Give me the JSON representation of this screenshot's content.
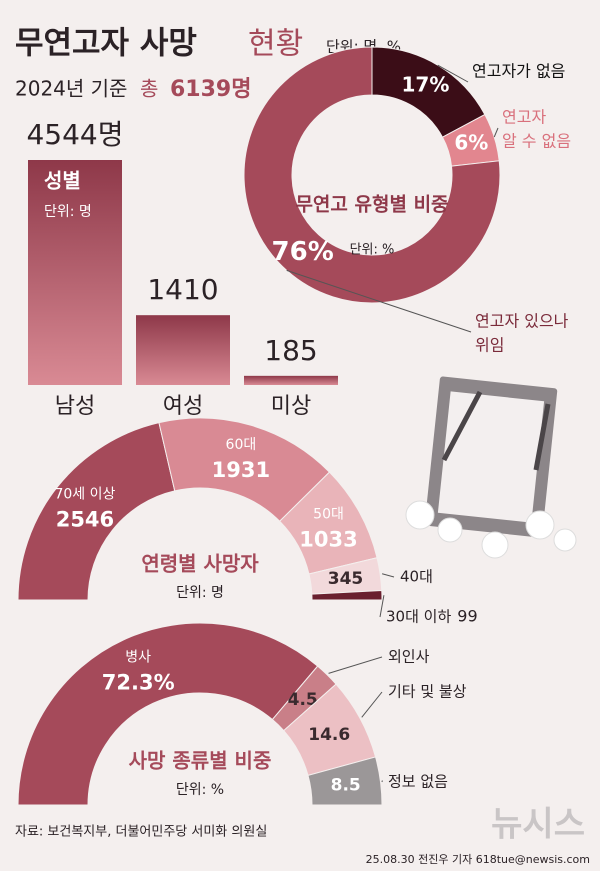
{
  "header": {
    "title": "무연고자 사망",
    "title_suffix": "현황",
    "unit": "단위: 명, %",
    "basis": "2024년 기준",
    "total_label": "총",
    "total": "6139명"
  },
  "chart_data": [
    {
      "type": "bar",
      "title": "성별",
      "subtitle": "단위: 명",
      "categories": [
        "남성",
        "여성",
        "미상"
      ],
      "values": [
        4544,
        1410,
        185
      ],
      "value_labels": [
        "4544명",
        "1410",
        "185"
      ],
      "color": "#a54a5a"
    },
    {
      "type": "donut",
      "title": "무연고 유형별 비중",
      "subtitle": "단위: %",
      "categories": [
        [
          "연고자가 없음"
        ],
        [
          "연고자",
          "알 수 없음"
        ],
        [
          "연고자 있으나",
          "위임"
        ]
      ],
      "values": [
        17,
        6,
        76
      ],
      "value_labels": [
        "17%",
        "6%",
        "76%"
      ],
      "colors": [
        "#3b0d17",
        "#e2868f",
        "#a54a5a"
      ]
    },
    {
      "type": "half-donut",
      "title": "연령별 사망자",
      "subtitle": "단위: 명",
      "categories": [
        "70세 이상",
        "60대",
        "50대",
        "40대",
        "30대 이하"
      ],
      "values": [
        2546,
        1931,
        1033,
        345,
        99
      ],
      "colors": [
        "#a54a5a",
        "#d98a94",
        "#e9b4b9",
        "#f2d9db",
        "#6a1f2e"
      ]
    },
    {
      "type": "half-donut",
      "title": "사망 종류별 비중",
      "subtitle": "단위: %",
      "categories": [
        "병사",
        "외인사",
        "기타 및 불상",
        "정보 없음"
      ],
      "values": [
        72.3,
        4.5,
        14.6,
        8.5
      ],
      "value_labels": [
        "72.3%",
        "4.5",
        "14.6",
        "8.5"
      ],
      "colors": [
        "#a54a5a",
        "#c97f88",
        "#ecc0c4",
        "#9b9798"
      ]
    }
  ],
  "footer": {
    "source": "자료: 보건복지부, 더불어민주당 서미화 의원실",
    "logo": "뉴시스",
    "credit": "25.08.30 전진우 기자 618tue@newsis.com"
  }
}
